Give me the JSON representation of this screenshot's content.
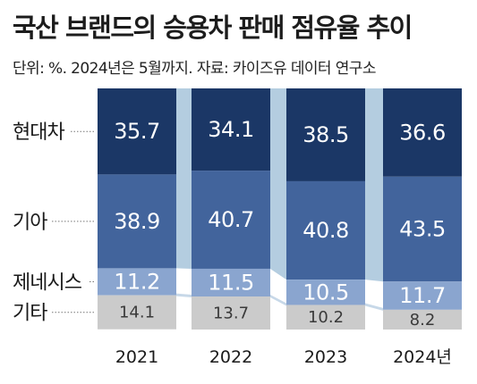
{
  "title": "국산 브랜드의 승용차 판매 점유율 추이",
  "subtitle": "단위: %. 2024년은 5월까지. 자료: 카이즈유 데이터 연구소",
  "colors": {
    "현대차": "#1b3766",
    "기아": "#42649c",
    "제네시스": "#8aa5cf",
    "기타": "#cbcbcb",
    "connector": "#b4cde0",
    "label_light": "#ffffff",
    "label_dark": "#3a3a3a"
  },
  "chart_data": {
    "type": "bar",
    "stacked": true,
    "categories": [
      "2021",
      "2022",
      "2023",
      "2024년"
    ],
    "series": [
      {
        "name": "현대차",
        "values": [
          35.7,
          34.1,
          38.5,
          36.6
        ]
      },
      {
        "name": "기아",
        "values": [
          38.9,
          40.7,
          40.8,
          43.5
        ]
      },
      {
        "name": "제네시스",
        "values": [
          11.2,
          11.5,
          10.5,
          11.7
        ]
      },
      {
        "name": "기타",
        "values": [
          14.1,
          13.7,
          10.2,
          8.2
        ]
      }
    ],
    "ylim": [
      0,
      100
    ],
    "value_labels": [
      [
        "35.7",
        "34.1",
        "38.5",
        "36.6"
      ],
      [
        "38.9",
        "40.7",
        "40.8",
        "43.5"
      ],
      [
        "11.2",
        "11.5",
        "10.5",
        "11.7"
      ],
      [
        "14.1",
        "13.7",
        "10.2",
        "8.2"
      ]
    ],
    "legend_placement": "left"
  }
}
